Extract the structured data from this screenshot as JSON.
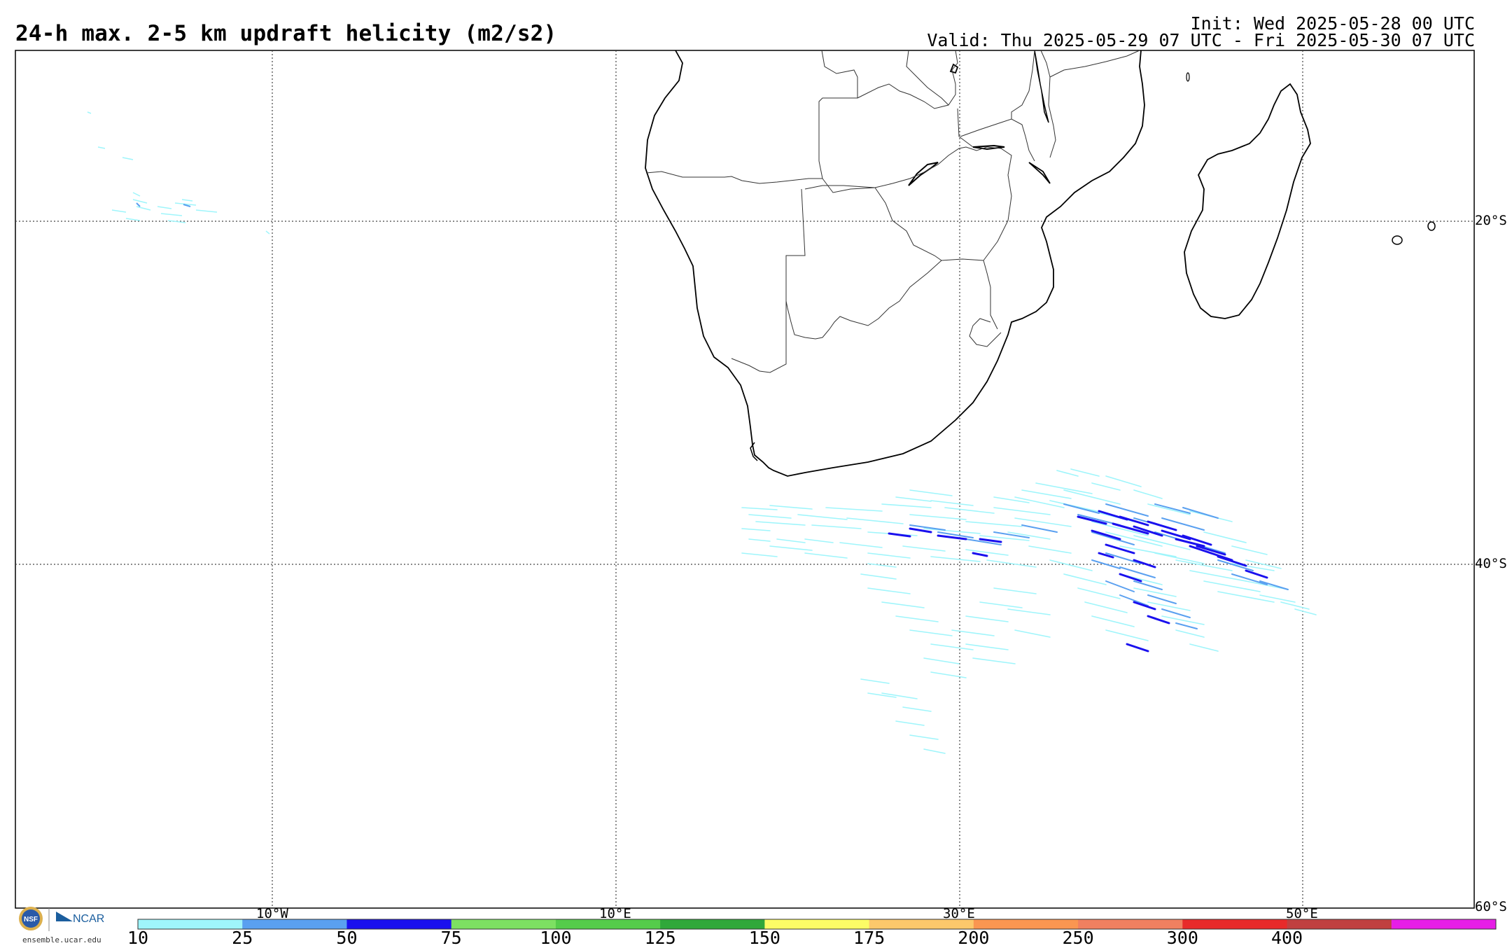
{
  "header": {
    "title": "24-h max. 2-5 km updraft helicity (m2/s2)",
    "init": "Init: Wed 2025-05-28 00 UTC",
    "valid": "Valid: Thu 2025-05-29 07 UTC - Fri 2025-05-30 07 UTC"
  },
  "map": {
    "lat_labels": [
      "20°S",
      "40°S",
      "60°S"
    ],
    "lon_labels": [
      "10°W",
      "10°E",
      "30°E",
      "50°E"
    ],
    "extent": {
      "lon_min": -25,
      "lon_max": 60,
      "lat_min": -60,
      "lat_max": -10
    }
  },
  "colorbar": {
    "labels": [
      "10",
      "25",
      "50",
      "75",
      "100",
      "125",
      "150",
      "175",
      "200",
      "250",
      "300",
      "400"
    ],
    "colors": [
      "#9ff5fb",
      "#5aa0f0",
      "#1a10ee",
      "#7de062",
      "#55cc4b",
      "#30a83a",
      "#fcfc66",
      "#fcc86b",
      "#fa9651",
      "#f08060",
      "#e82a2a",
      "#c04040",
      "#e61ee6"
    ]
  },
  "logo": {
    "nsf": "NSF",
    "ncar": "NCAR",
    "url": "ensemble.ucar.edu"
  },
  "icons": [
    "nsf-logo-icon",
    "ncar-logo-icon"
  ]
}
